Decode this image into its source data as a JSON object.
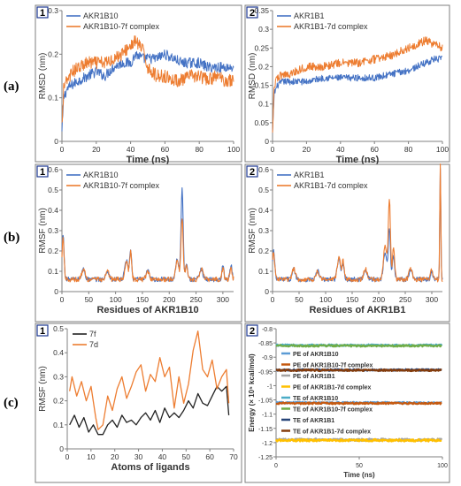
{
  "row_labels": [
    "(a)",
    "(b)",
    "(c)"
  ],
  "colors": {
    "blue": "#4472c4",
    "orange": "#ed7d31",
    "black": "#222222"
  },
  "chart_data": [
    {
      "id": "a1",
      "panel": "1",
      "type": "line",
      "xlabel": "Time (ns)",
      "ylabel": "RMSD (nm)",
      "xlim": [
        0,
        100
      ],
      "ylim": [
        0,
        0.3
      ],
      "xticks": [
        0,
        20,
        40,
        60,
        80,
        100
      ],
      "yticks": [
        0,
        0.1,
        0.2,
        0.3
      ],
      "ytick_labels": [
        "0",
        "0.1",
        "0.2",
        "0.3"
      ],
      "legend": "top-left",
      "series": [
        {
          "name": "AKR1B10",
          "color": "#4472c4",
          "noise": 0.012,
          "x": [
            0,
            1,
            3,
            6,
            10,
            15,
            20,
            25,
            30,
            35,
            40,
            43,
            47,
            50,
            55,
            60,
            65,
            70,
            75,
            80,
            85,
            90,
            95,
            100
          ],
          "y": [
            0.02,
            0.1,
            0.12,
            0.13,
            0.14,
            0.15,
            0.16,
            0.15,
            0.17,
            0.18,
            0.18,
            0.2,
            0.19,
            0.19,
            0.19,
            0.2,
            0.19,
            0.18,
            0.18,
            0.18,
            0.17,
            0.17,
            0.17,
            0.17
          ]
        },
        {
          "name": "AKR1B10-7f complex",
          "color": "#ed7d31",
          "noise": 0.015,
          "x": [
            0,
            1,
            3,
            6,
            10,
            15,
            20,
            25,
            30,
            35,
            40,
            43,
            47,
            50,
            55,
            60,
            65,
            70,
            75,
            80,
            85,
            90,
            95,
            100
          ],
          "y": [
            0.03,
            0.12,
            0.14,
            0.16,
            0.17,
            0.18,
            0.18,
            0.18,
            0.19,
            0.2,
            0.22,
            0.23,
            0.21,
            0.17,
            0.15,
            0.15,
            0.14,
            0.14,
            0.15,
            0.15,
            0.14,
            0.15,
            0.14,
            0.14
          ]
        }
      ]
    },
    {
      "id": "a2",
      "panel": "2",
      "type": "line",
      "xlabel": "Time (ns)",
      "ylabel": "RMSD (nm)",
      "xlim": [
        0,
        100
      ],
      "ylim": [
        0,
        0.35
      ],
      "xticks": [
        0,
        20,
        40,
        60,
        80,
        100
      ],
      "yticks": [
        0,
        0.05,
        0.1,
        0.15,
        0.2,
        0.25,
        0.3,
        0.35
      ],
      "ytick_labels": [
        "0",
        "0.05",
        "0.1",
        "0.15",
        "0.2",
        "0.25",
        "0.3",
        "0.35"
      ],
      "legend": "top-left",
      "series": [
        {
          "name": "AKR1B1",
          "color": "#4472c4",
          "noise": 0.009,
          "x": [
            0,
            1,
            3,
            6,
            10,
            20,
            30,
            40,
            50,
            60,
            70,
            80,
            85,
            90,
            95,
            100
          ],
          "y": [
            0.02,
            0.13,
            0.15,
            0.16,
            0.16,
            0.16,
            0.17,
            0.17,
            0.17,
            0.17,
            0.18,
            0.19,
            0.2,
            0.21,
            0.22,
            0.22
          ]
        },
        {
          "name": "AKR1B1-7d complex",
          "color": "#ed7d31",
          "noise": 0.011,
          "x": [
            0,
            1,
            3,
            6,
            10,
            20,
            30,
            40,
            50,
            60,
            70,
            80,
            85,
            90,
            95,
            100
          ],
          "y": [
            0.03,
            0.15,
            0.17,
            0.18,
            0.18,
            0.2,
            0.2,
            0.21,
            0.21,
            0.22,
            0.23,
            0.25,
            0.26,
            0.27,
            0.26,
            0.25
          ]
        }
      ]
    },
    {
      "id": "b1",
      "panel": "1",
      "type": "line",
      "xlabel": "Residues of AKR1B10",
      "ylabel": "RMSF (nm)",
      "xlim": [
        0,
        320
      ],
      "ylim": [
        0,
        0.6
      ],
      "xticks": [
        0,
        50,
        100,
        150,
        200,
        250,
        300
      ],
      "yticks": [
        0,
        0.1,
        0.2,
        0.3,
        0.4,
        0.5,
        0.6
      ],
      "ytick_labels": [
        "0",
        "0.1",
        "0.2",
        "0.3",
        "0.4",
        "0.5",
        "0.6"
      ],
      "legend": "top-left",
      "base": 0.06,
      "noise": 0.012,
      "series": [
        {
          "name": "AKR1B10",
          "color": "#4472c4",
          "peaks": [
            [
              2,
              0.22,
              2
            ],
            [
              40,
              0.05,
              3
            ],
            [
              85,
              0.04,
              3
            ],
            [
              120,
              0.09,
              3
            ],
            [
              128,
              0.14,
              2
            ],
            [
              160,
              0.04,
              3
            ],
            [
              215,
              0.1,
              3
            ],
            [
              224,
              0.45,
              2
            ],
            [
              232,
              0.08,
              2
            ],
            [
              260,
              0.05,
              3
            ],
            [
              300,
              0.06,
              2
            ],
            [
              315,
              0.07,
              2
            ]
          ]
        },
        {
          "name": "AKR1B10-7f complex",
          "color": "#ed7d31",
          "peaks": [
            [
              2,
              0.2,
              2
            ],
            [
              40,
              0.05,
              3
            ],
            [
              85,
              0.04,
              3
            ],
            [
              120,
              0.08,
              3
            ],
            [
              128,
              0.13,
              2
            ],
            [
              160,
              0.04,
              3
            ],
            [
              215,
              0.09,
              3
            ],
            [
              224,
              0.3,
              2
            ],
            [
              232,
              0.07,
              2
            ],
            [
              260,
              0.05,
              3
            ],
            [
              300,
              0.05,
              2
            ],
            [
              315,
              0.06,
              2
            ]
          ]
        }
      ]
    },
    {
      "id": "b2",
      "panel": "2",
      "type": "line",
      "xlabel": "Residues of AKR1B1",
      "ylabel": "RMSF (nm)",
      "xlim": [
        0,
        320
      ],
      "ylim": [
        0,
        0.6
      ],
      "xticks": [
        0,
        50,
        100,
        150,
        200,
        250,
        300
      ],
      "yticks": [
        0,
        0.1,
        0.2,
        0.3,
        0.4,
        0.5,
        0.6
      ],
      "ytick_labels": [
        "0",
        "0.1",
        "0.2",
        "0.3",
        "0.4",
        "0.5",
        "0.6"
      ],
      "legend": "top-left",
      "base": 0.06,
      "noise": 0.012,
      "series": [
        {
          "name": "AKR1B1",
          "color": "#4472c4",
          "peaks": [
            [
              2,
              0.14,
              2
            ],
            [
              40,
              0.05,
              3
            ],
            [
              85,
              0.04,
              3
            ],
            [
              125,
              0.1,
              3
            ],
            [
              133,
              0.08,
              2
            ],
            [
              175,
              0.05,
              3
            ],
            [
              212,
              0.14,
              3
            ],
            [
              220,
              0.25,
              2
            ],
            [
              228,
              0.12,
              2
            ],
            [
              260,
              0.05,
              3
            ],
            [
              300,
              0.04,
              2
            ],
            [
              316,
              0.55,
              1
            ]
          ]
        },
        {
          "name": "AKR1B1-7d complex",
          "color": "#ed7d31",
          "peaks": [
            [
              2,
              0.14,
              2
            ],
            [
              40,
              0.05,
              3
            ],
            [
              85,
              0.04,
              3
            ],
            [
              125,
              0.11,
              3
            ],
            [
              133,
              0.09,
              2
            ],
            [
              175,
              0.05,
              3
            ],
            [
              212,
              0.17,
              3
            ],
            [
              220,
              0.4,
              2
            ],
            [
              228,
              0.16,
              2
            ],
            [
              260,
              0.05,
              3
            ],
            [
              300,
              0.05,
              2
            ],
            [
              316,
              0.56,
              1
            ]
          ]
        }
      ]
    },
    {
      "id": "c1",
      "panel": "1",
      "type": "line",
      "xlabel": "Atoms of ligands",
      "ylabel": "RMSF (nm)",
      "xlim": [
        0,
        70
      ],
      "ylim": [
        0,
        0.5
      ],
      "xticks": [
        0,
        10,
        20,
        30,
        40,
        50,
        60,
        70
      ],
      "yticks": [
        0,
        0.1,
        0.2,
        0.3,
        0.4,
        0.5
      ],
      "ytick_labels": [
        "0",
        "0.1",
        "0.2",
        "0.3",
        "0.4",
        "0.5"
      ],
      "legend": "top-left",
      "series": [
        {
          "name": "7f",
          "color": "#222222",
          "x": [
            1,
            3,
            5,
            7,
            9,
            11,
            13,
            15,
            17,
            19,
            21,
            23,
            25,
            27,
            29,
            31,
            33,
            35,
            37,
            39,
            41,
            43,
            45,
            47,
            49,
            51,
            53,
            55,
            57,
            59,
            61,
            63,
            65,
            67,
            68
          ],
          "y": [
            0.1,
            0.14,
            0.09,
            0.13,
            0.07,
            0.1,
            0.06,
            0.06,
            0.1,
            0.12,
            0.09,
            0.14,
            0.11,
            0.12,
            0.1,
            0.13,
            0.15,
            0.12,
            0.16,
            0.11,
            0.17,
            0.13,
            0.15,
            0.13,
            0.16,
            0.2,
            0.17,
            0.23,
            0.19,
            0.18,
            0.22,
            0.26,
            0.24,
            0.26,
            0.14
          ]
        },
        {
          "name": "7d",
          "color": "#ed7d31",
          "x": [
            1,
            2,
            4,
            6,
            8,
            10,
            12,
            13,
            15,
            17,
            19,
            21,
            23,
            25,
            27,
            29,
            31,
            33,
            35,
            37,
            39,
            41,
            43,
            45,
            47,
            49,
            51,
            53,
            55,
            57,
            59,
            61,
            63,
            65,
            67,
            68
          ],
          "y": [
            0.24,
            0.3,
            0.22,
            0.28,
            0.2,
            0.26,
            0.13,
            0.08,
            0.1,
            0.22,
            0.16,
            0.25,
            0.3,
            0.21,
            0.26,
            0.32,
            0.35,
            0.24,
            0.31,
            0.28,
            0.38,
            0.3,
            0.34,
            0.17,
            0.3,
            0.19,
            0.27,
            0.41,
            0.49,
            0.33,
            0.3,
            0.37,
            0.25,
            0.3,
            0.33,
            0.19
          ]
        }
      ]
    },
    {
      "id": "c2",
      "panel": "2",
      "type": "line",
      "xlabel": "Time (ns)",
      "ylabel": "Energy (× 10⁵ kcal/mol)",
      "xlim": [
        0,
        100
      ],
      "ylim": [
        -1.25,
        -0.8
      ],
      "xticks": [
        0,
        50,
        100
      ],
      "yticks": [
        -1.25,
        -1.2,
        -1.15,
        -1.1,
        -1.05,
        -1,
        -0.95,
        -0.9,
        -0.85,
        -0.8
      ],
      "ytick_labels": [
        "-1.25",
        "-1.2",
        "-1.15",
        "-1.1",
        "-1.05",
        "-1",
        "-0.95",
        "-0.9",
        "-0.85",
        "-0.8"
      ],
      "legend": "center-left",
      "series": [
        {
          "name": "PE of AKR1B10",
          "color": "#5b9bd5",
          "level": -1.06,
          "noise": 0.003
        },
        {
          "name": "PE of AKR1B10-7f complex",
          "color": "#c55a11",
          "level": -1.062,
          "noise": 0.003
        },
        {
          "name": "PE of AKR1B1",
          "color": "#a5a5a5",
          "level": -1.19,
          "noise": 0.004
        },
        {
          "name": "PE of AKR1B1-7d complex",
          "color": "#ffc000",
          "level": -1.192,
          "noise": 0.004
        },
        {
          "name": "TE of AKR1B10",
          "color": "#4bacc6",
          "level": -0.858,
          "noise": 0.003
        },
        {
          "name": "TE of AKR1B10-7f complex",
          "color": "#70ad47",
          "level": -0.86,
          "noise": 0.003
        },
        {
          "name": "TE of AKR1B1",
          "color": "#264478",
          "level": -0.945,
          "noise": 0.003
        },
        {
          "name": "TE of AKR1B1-7d complex",
          "color": "#843c0c",
          "level": -0.946,
          "noise": 0.003
        }
      ]
    }
  ]
}
